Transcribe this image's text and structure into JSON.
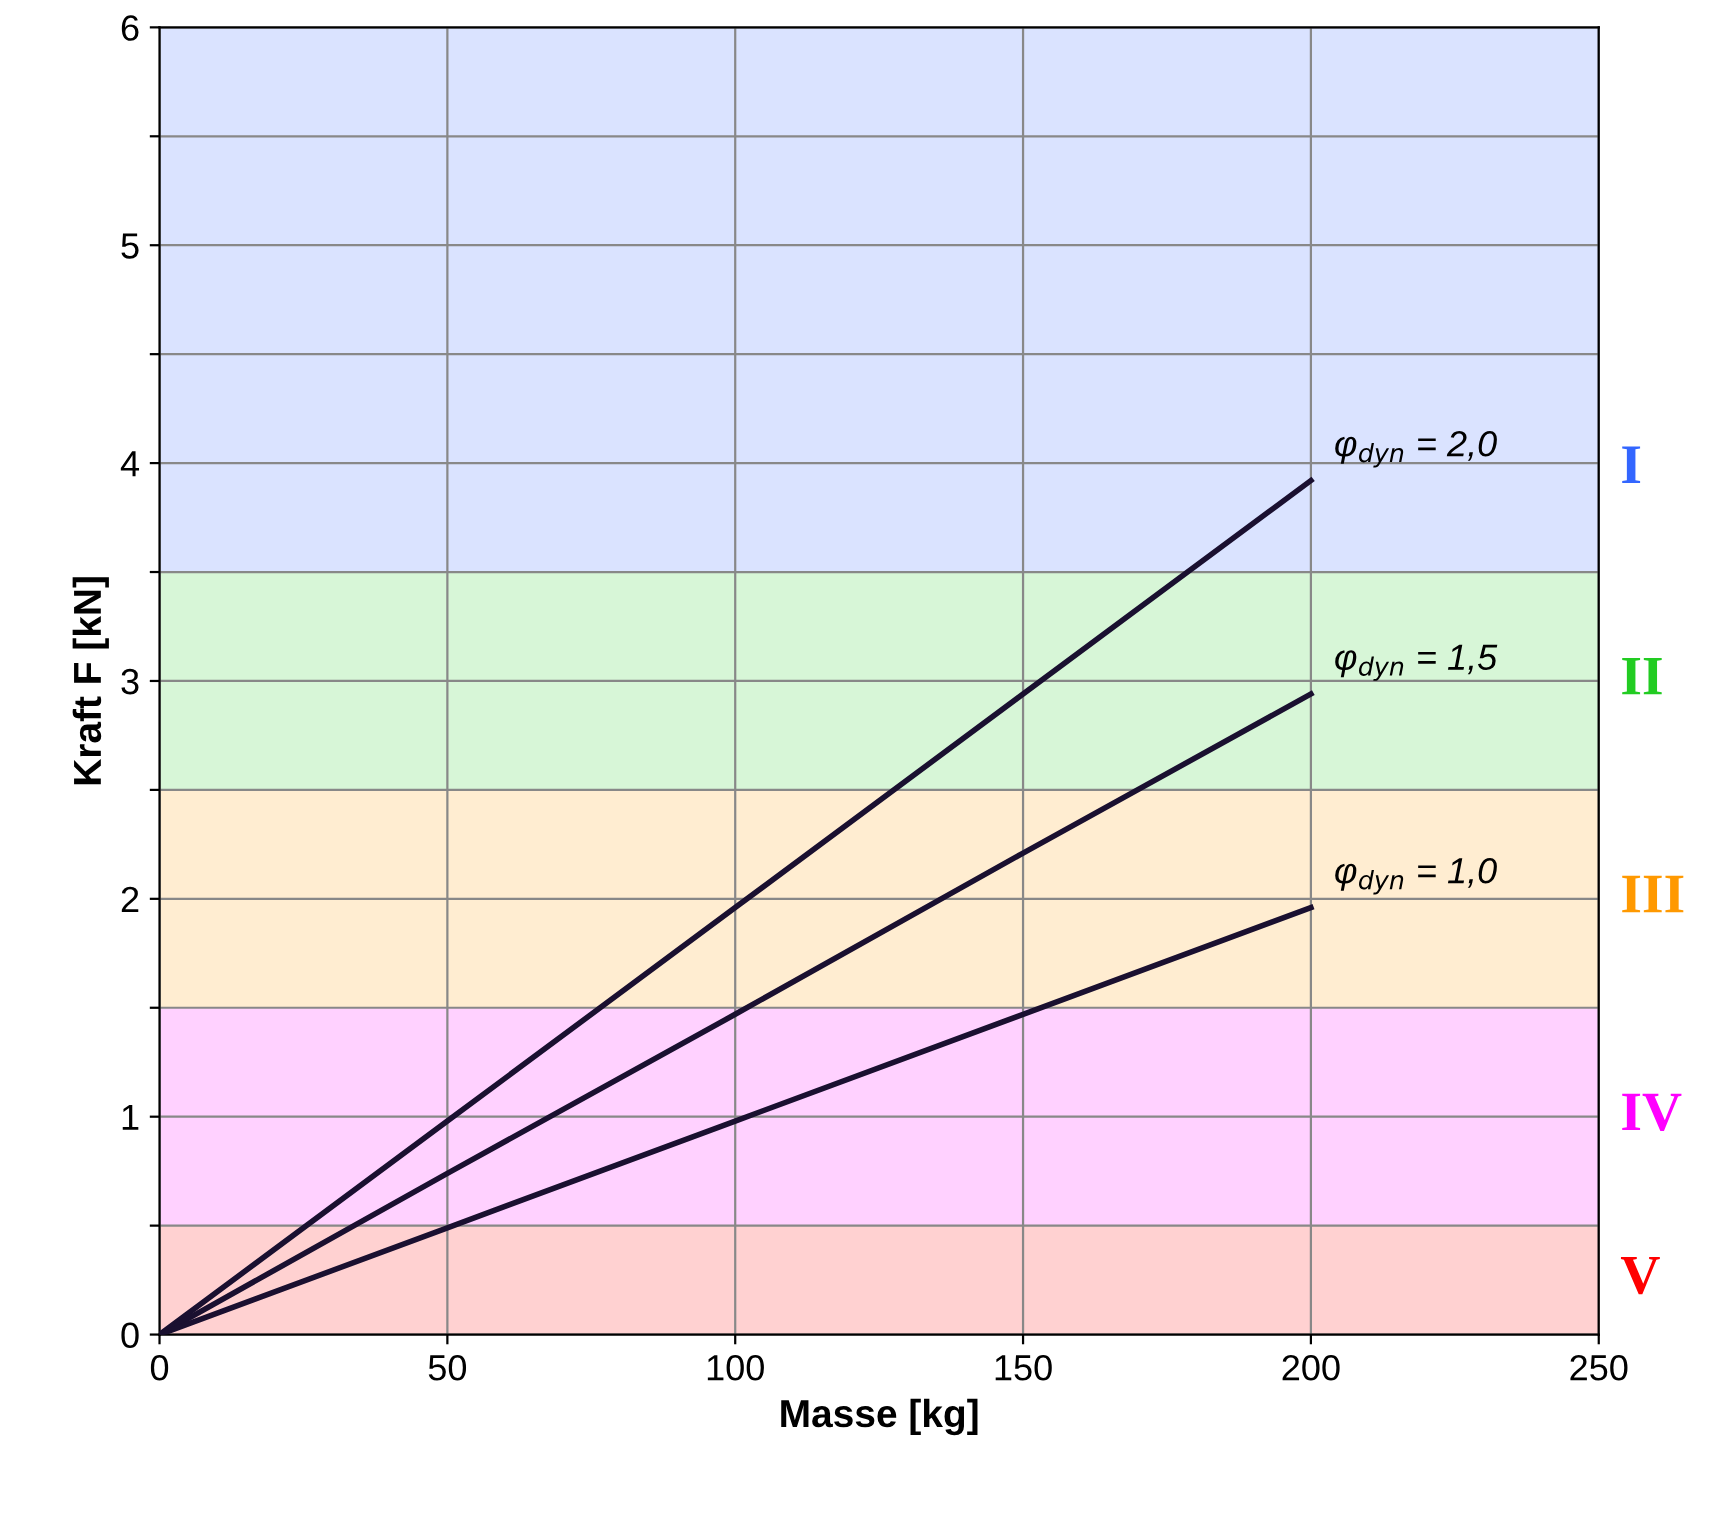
{
  "chart_data": {
    "type": "line",
    "xlabel": "Masse [kg]",
    "ylabel": "Kraft F [kN]",
    "xlim": [
      0,
      250
    ],
    "xticks": [
      0,
      50,
      100,
      150,
      200,
      250
    ],
    "ylim": [
      0,
      6
    ],
    "yticks": [
      0,
      {
        "value": 0.5,
        "label": null
      },
      1,
      {
        "value": 1.5,
        "label": null
      },
      2,
      {
        "value": 2.5,
        "label": null
      },
      3,
      {
        "value": 3.5,
        "label": null
      },
      4,
      {
        "value": 4.5,
        "label": null
      },
      5,
      {
        "value": 5.5,
        "label": null
      },
      6
    ],
    "grid": true,
    "legend": false,
    "marker": "none",
    "line_style": "solid",
    "series": [
      {
        "name": "φ$_{dyn}$ = 2,0",
        "color": "#1a1030",
        "x": [
          0,
          50,
          100,
          150,
          200
        ],
        "values": [
          0,
          0.98,
          1.96,
          2.94,
          3.92
        ]
      },
      {
        "name": "φ$_{dyn}$ = 1,5",
        "color": "#1a1030",
        "x": [
          0,
          50,
          100,
          150,
          200
        ],
        "values": [
          0,
          0.74,
          1.47,
          2.21,
          2.94
        ]
      },
      {
        "name": "φ$_{dyn}$ = 1,0",
        "color": "#1a1030",
        "x": [
          0,
          50,
          100,
          150,
          200
        ],
        "values": [
          0,
          0.49,
          0.98,
          1.47,
          1.96
        ]
      }
    ],
    "bands": [
      {
        "axis": "y",
        "from": 3.5,
        "to": 6,
        "label": "I",
        "color": "#3366ff"
      },
      {
        "axis": "y",
        "from": 2.5,
        "to": 3.5,
        "label": "II",
        "color": "#22cc22"
      },
      {
        "axis": "y",
        "from": 1.5,
        "to": 2.5,
        "label": "III",
        "color": "#ff9900"
      },
      {
        "axis": "y",
        "from": 0.5,
        "to": 1.5,
        "label": "IV",
        "color": "#ff00ff"
      },
      {
        "axis": "y",
        "from": 0,
        "to": 0.5,
        "label": "V",
        "color": "#ff0000"
      }
    ]
  }
}
